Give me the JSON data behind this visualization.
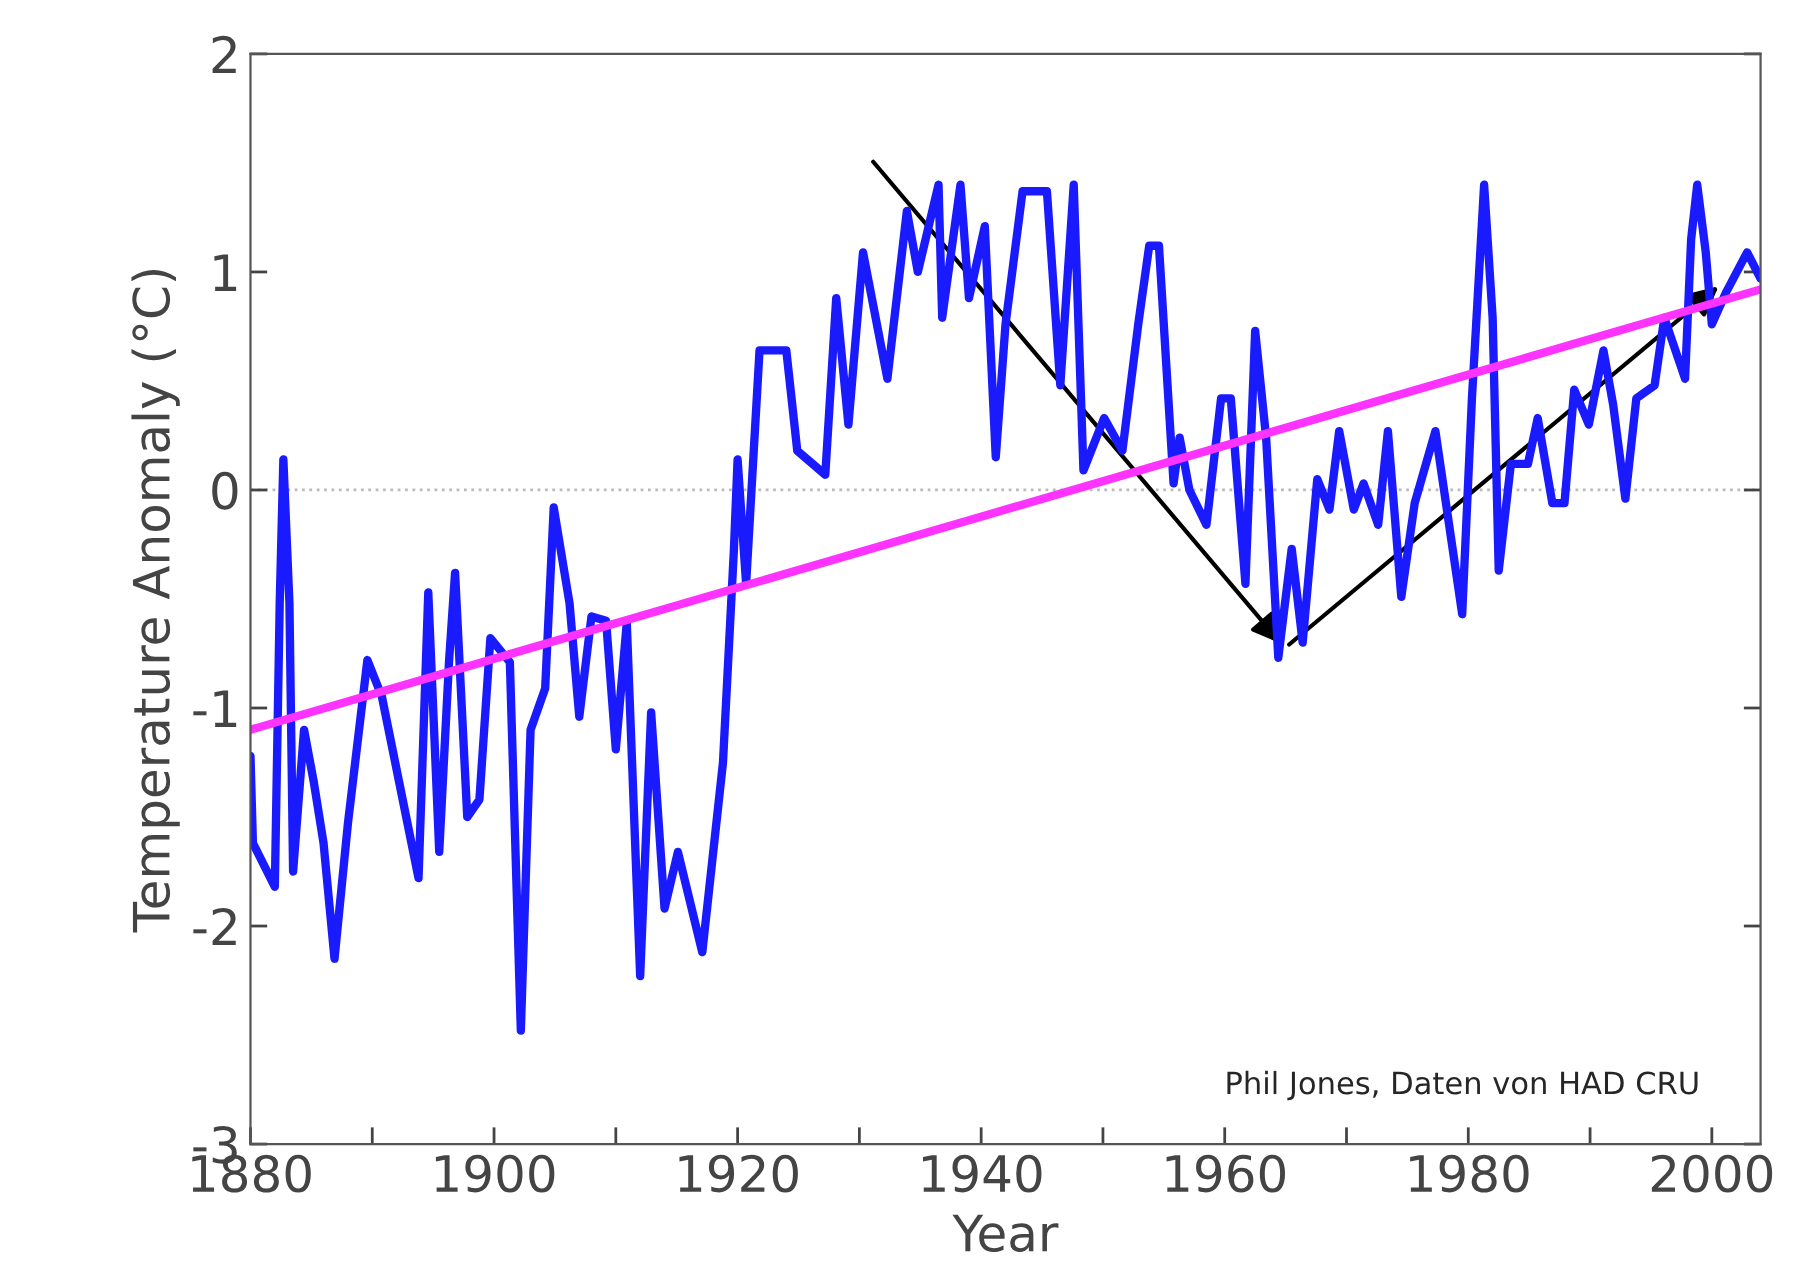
{
  "chart_data": {
    "type": "line",
    "xlabel": "Year",
    "ylabel": "Temperature Anomaly (°C)",
    "xlim": [
      1880,
      2004
    ],
    "ylim": [
      -3,
      2
    ],
    "xticks": [
      1880,
      {
        "value": 1890,
        "label": null
      },
      1900,
      {
        "value": 1910,
        "label": null
      },
      1920,
      {
        "value": 1930,
        "label": null
      },
      1940,
      {
        "value": 1950,
        "label": null
      },
      1960,
      {
        "value": 1970,
        "label": null
      },
      1980,
      {
        "value": 1990,
        "label": null
      },
      2000
    ],
    "yticks": [
      {
        "value": -3,
        "label": "-3"
      },
      {
        "value": -2,
        "label": "-2"
      },
      {
        "value": -1,
        "label": "-1"
      },
      0,
      1,
      2
    ],
    "grid": false,
    "legend": false,
    "marker": "none",
    "line_style": "solid",
    "ref_lines": [
      {
        "axis": "y",
        "value": 0,
        "label": null,
        "color": "#bbbbbb",
        "line_style": "dotted"
      }
    ],
    "annotations": [
      "Phil Jones, Daten von HAD CRU"
    ],
    "series": [
      {
        "color": "#1a1aff",
        "x": [
          1880,
          1880.2,
          1882,
          1882.4,
          1882.7,
          1883.2,
          1883.5,
          1884.4,
          1885.2,
          1886,
          1886.9,
          1888,
          1889.6,
          1890.8,
          1892.1,
          1893.8,
          1894.6,
          1895.5,
          1896.3,
          1896.8,
          1897.8,
          1898.8,
          1899.7,
          1901.3,
          1902.2,
          1903,
          1904.2,
          1904.9,
          1906.2,
          1907,
          1908,
          1909.2,
          1910,
          1910.9,
          1912,
          1912.9,
          1914,
          1915.1,
          1917.1,
          1918.8,
          1919.7,
          1920,
          1920.7,
          1921.8,
          1924,
          1924.9,
          1927.2,
          1928.1,
          1929.1,
          1930.3,
          1932.3,
          1933.9,
          1934.8,
          1936.5,
          1936.8,
          1938.3,
          1939,
          1940.3,
          1941.2,
          1942,
          1943.4,
          1945.4,
          1946.5,
          1947.6,
          1948.4,
          1950.1,
          1951.6,
          1952.9,
          1953.8,
          1954.6,
          1955.8,
          1956.3,
          1957.1,
          1958.5,
          1959.7,
          1960.5,
          1961.7,
          1962.5,
          1963.4,
          1964.4,
          1965.5,
          1966.4,
          1967.6,
          1968.6,
          1969.4,
          1970.6,
          1971.4,
          1972.6,
          1973.4,
          1974.5,
          1975.6,
          1977.3,
          1979.5,
          1980.3,
          1981.3,
          1982,
          1982.5,
          1983.5,
          1984.9,
          1985.7,
          1986.9,
          1987.9,
          1988.7,
          1989.9,
          1991.1,
          1991.9,
          1992.9,
          1993.8,
          1995.3,
          1996.1,
          1997.8,
          1998.3,
          1998.8,
          1999.5,
          2000,
          2001.2,
          2002.9,
          2004
        ],
        "values": [
          -1.22,
          -1.62,
          -1.82,
          -0.52,
          0.14,
          -0.52,
          -1.75,
          -1.1,
          -1.34,
          -1.62,
          -2.15,
          -1.53,
          -0.78,
          -0.95,
          -1.31,
          -1.78,
          -0.47,
          -1.66,
          -0.79,
          -0.38,
          -1.5,
          -1.42,
          -0.68,
          -0.79,
          -2.48,
          -1.1,
          -0.91,
          -0.08,
          -0.52,
          -1.04,
          -0.58,
          -0.6,
          -1.19,
          -0.61,
          -2.23,
          -1.02,
          -1.92,
          -1.66,
          -2.12,
          -1.25,
          -0.27,
          0.14,
          -0.43,
          0.64,
          0.64,
          0.18,
          0.07,
          0.88,
          0.3,
          1.09,
          0.51,
          1.28,
          1.0,
          1.4,
          0.79,
          1.4,
          0.88,
          1.21,
          0.15,
          0.76,
          1.37,
          1.37,
          0.48,
          1.4,
          0.09,
          0.33,
          0.18,
          0.76,
          1.12,
          1.12,
          0.03,
          0.24,
          0.0,
          -0.16,
          0.42,
          0.42,
          -0.43,
          0.73,
          0.24,
          -0.77,
          -0.27,
          -0.7,
          0.05,
          -0.09,
          0.27,
          -0.09,
          0.03,
          -0.16,
          0.27,
          -0.49,
          -0.06,
          0.27,
          -0.57,
          0.42,
          1.4,
          0.79,
          -0.37,
          0.12,
          0.12,
          0.33,
          -0.06,
          -0.06,
          0.46,
          0.3,
          0.64,
          0.39,
          -0.04,
          0.42,
          0.48,
          0.79,
          0.51,
          1.15,
          1.4,
          1.09,
          0.76,
          0.91,
          1.09,
          0.97
        ]
      },
      {
        "color": "#ff33ff",
        "x": [
          1880,
          2004
        ],
        "values": [
          -1.1,
          0.92
        ]
      }
    ]
  }
}
